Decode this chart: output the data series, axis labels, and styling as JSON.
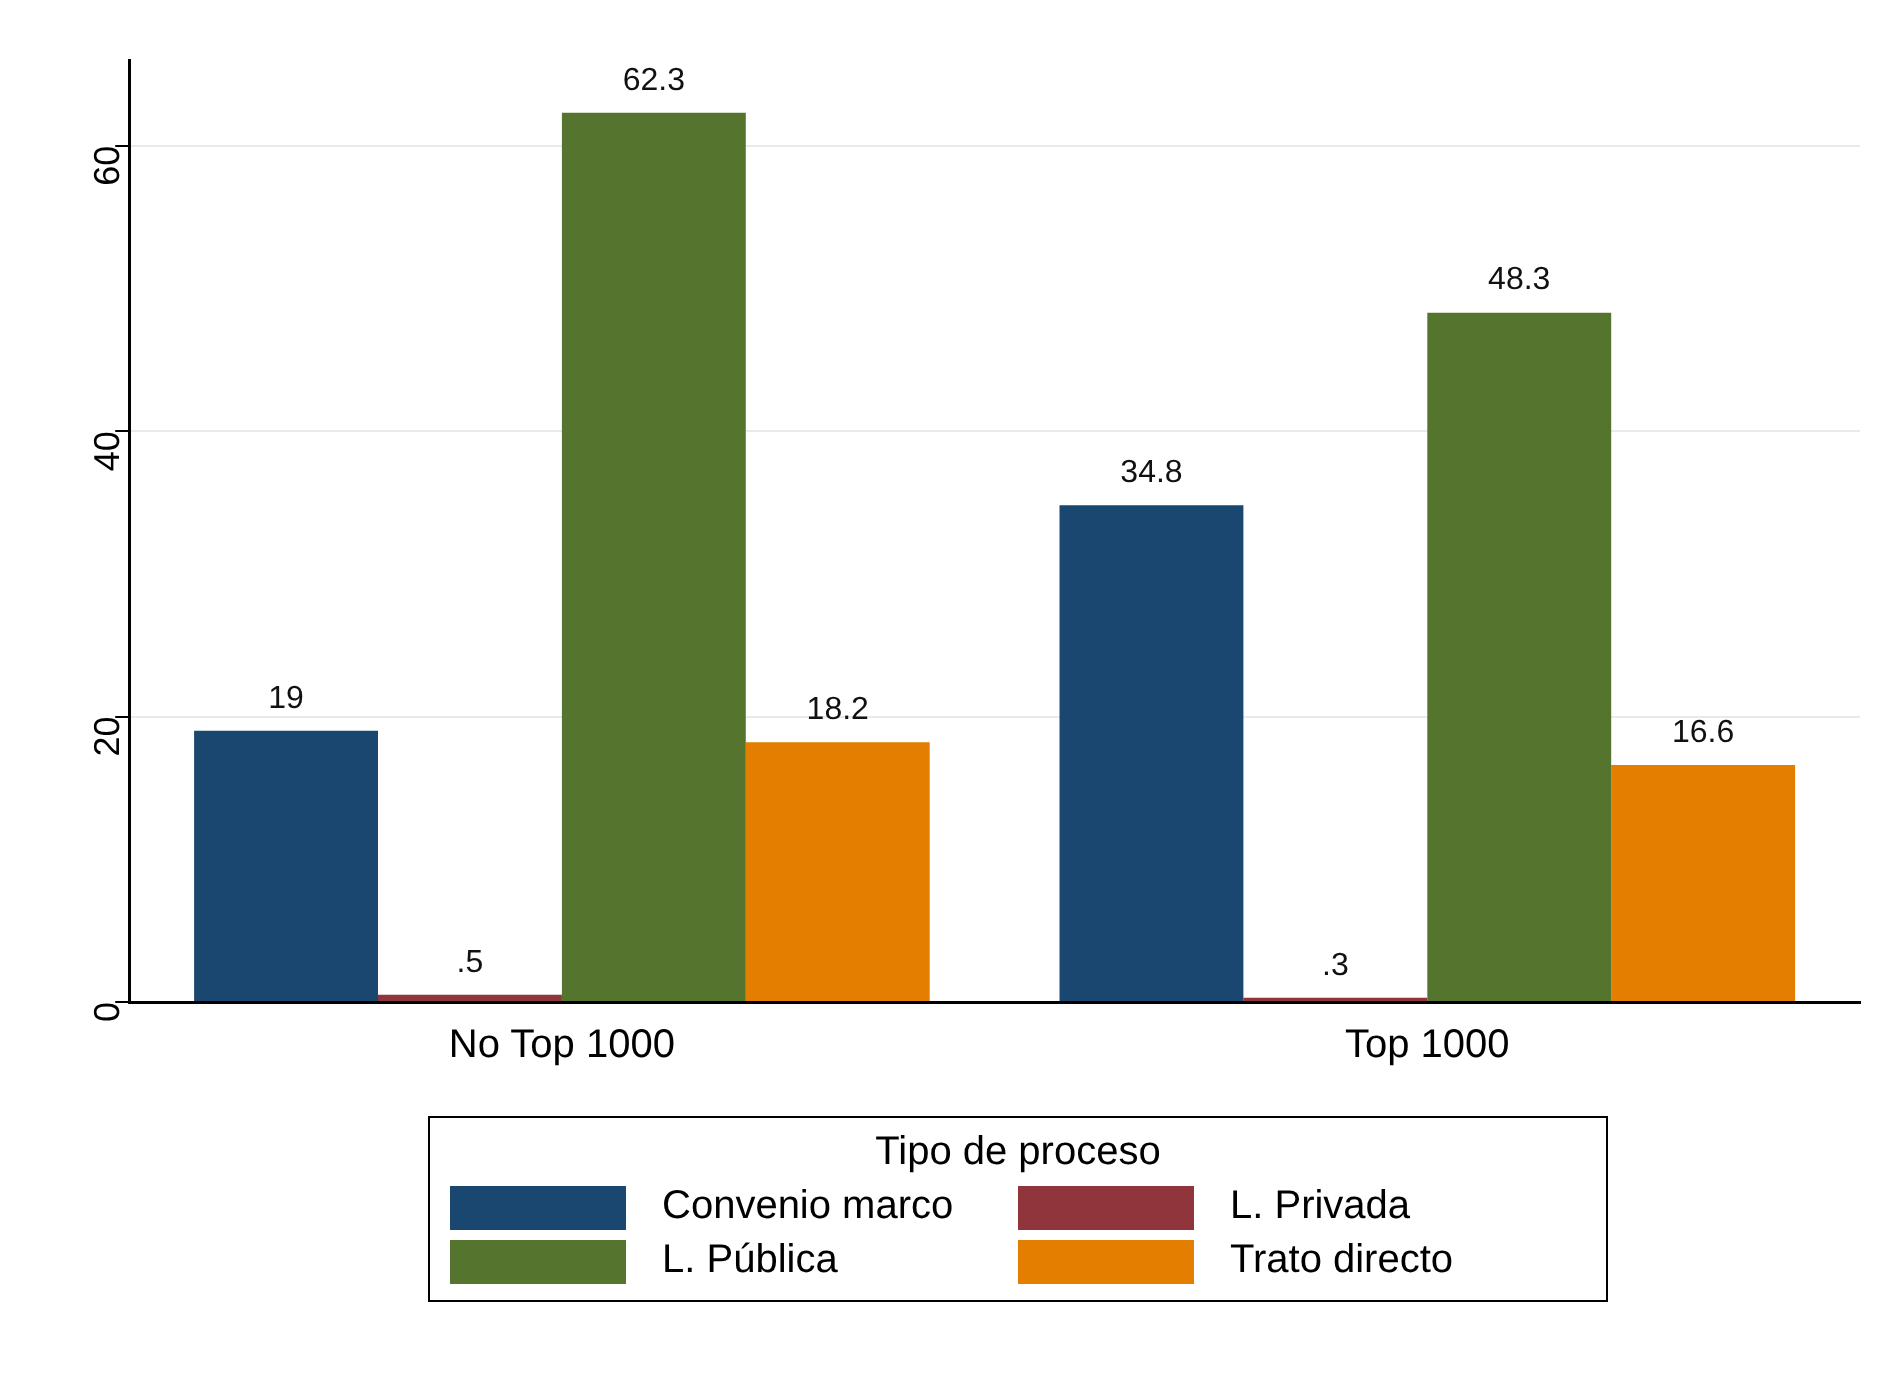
{
  "chart_data": {
    "type": "bar",
    "categories": [
      "No Top 1000",
      "Top 1000"
    ],
    "series": [
      {
        "name": "Convenio marco",
        "color": "#1a476f",
        "values": [
          19,
          34.8
        ]
      },
      {
        "name": "L. Privada",
        "color": "#90353b",
        "values": [
          0.5,
          0.3
        ]
      },
      {
        "name": "L. Pública",
        "color": "#55752f",
        "values": [
          62.3,
          48.3
        ]
      },
      {
        "name": "Trato directo",
        "color": "#e37e00",
        "values": [
          18.2,
          16.6
        ]
      }
    ],
    "value_labels": [
      [
        "19",
        "34.8"
      ],
      [
        ".5",
        ".3"
      ],
      [
        "62.3",
        "48.3"
      ],
      [
        "18.2",
        "16.6"
      ]
    ],
    "ylim": [
      0,
      66
    ],
    "yticks": [
      0,
      20,
      40,
      60
    ],
    "grid": "y",
    "legend": "bottom",
    "legend_title": "Tipo de proceso"
  }
}
